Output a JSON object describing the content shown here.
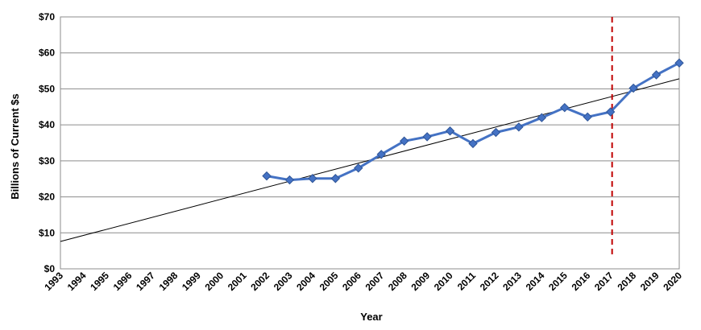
{
  "chart_data": {
    "type": "line",
    "title": "",
    "xlabel": "Year",
    "ylabel": "Billions of Current $s",
    "x_categories": [
      "1993",
      "1994",
      "1995",
      "1996",
      "1997",
      "1998",
      "1999",
      "2000",
      "2001",
      "2002",
      "2003",
      "2004",
      "2005",
      "2006",
      "2007",
      "2008",
      "2009",
      "2010",
      "2011",
      "2012",
      "2013",
      "2014",
      "2015",
      "2016",
      "2017",
      "2018",
      "2019",
      "2020"
    ],
    "y_ticks": [
      "$0",
      "$10",
      "$20",
      "$30",
      "$40",
      "$50",
      "$60",
      "$70"
    ],
    "ylim": [
      0,
      70
    ],
    "grid": "horizontal",
    "legend": "none",
    "series": [
      {
        "color": "#4472C4",
        "marker": "diamond",
        "x": [
          "2002",
          "2003",
          "2004",
          "2005",
          "2006",
          "2007",
          "2008",
          "2009",
          "2010",
          "2011",
          "2012",
          "2013",
          "2014",
          "2015",
          "2016",
          "2017",
          "2018",
          "2019",
          "2020"
        ],
        "y": [
          25.8,
          24.7,
          25.1,
          25.1,
          28.0,
          31.8,
          35.5,
          36.7,
          38.3,
          34.8,
          37.9,
          39.4,
          42.0,
          44.8,
          42.2,
          43.6,
          50.2,
          53.9,
          57.2
        ]
      }
    ],
    "trendline": {
      "type": "linear",
      "color": "#000000",
      "from": {
        "x": "1993",
        "y": 7.6
      },
      "to": {
        "x": "2020",
        "y": 52.8
      }
    },
    "annotations": [
      {
        "type": "vertical-dashed-line",
        "x": "2017",
        "color": "#C00000"
      }
    ]
  }
}
